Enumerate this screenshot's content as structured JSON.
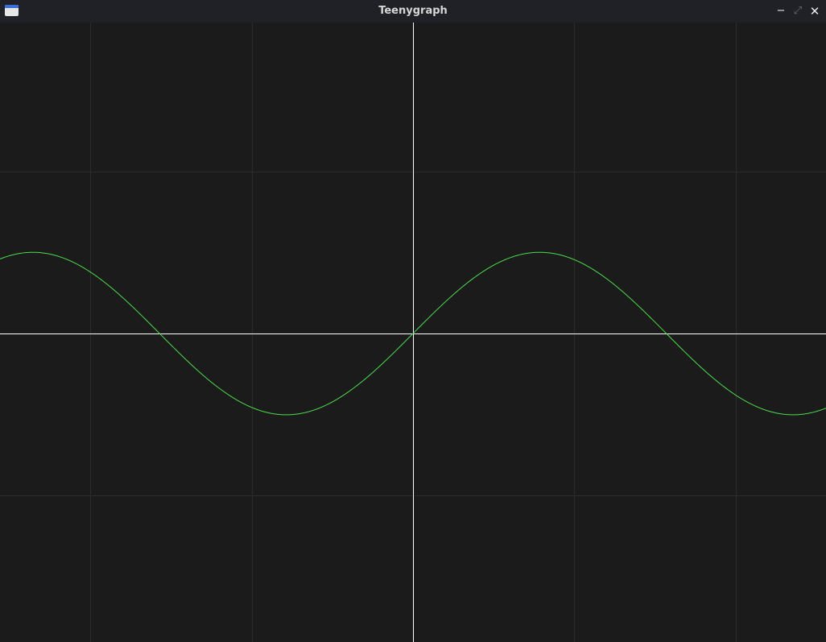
{
  "window": {
    "title": "Teenygraph",
    "controls": {
      "minimize": "−",
      "maximize": "⤢",
      "close": "✕"
    },
    "icon": "app-window-icon"
  },
  "colors": {
    "background": "#1b1b1b",
    "grid": "#2c2c2c",
    "axes": "#ffffff",
    "curve": "#4cdb4c"
  },
  "chart_data": {
    "type": "line",
    "function": "sin(x)",
    "grid": true,
    "xlim": [
      -3.26,
      3.26
    ],
    "ylim": [
      -2.43,
      2.45
    ],
    "grid_step": [
      1.273,
      1.273
    ],
    "series": [
      {
        "amplitude": 0.64,
        "period": 4.0,
        "phase": 0,
        "color": "#4cdb4c"
      }
    ]
  }
}
